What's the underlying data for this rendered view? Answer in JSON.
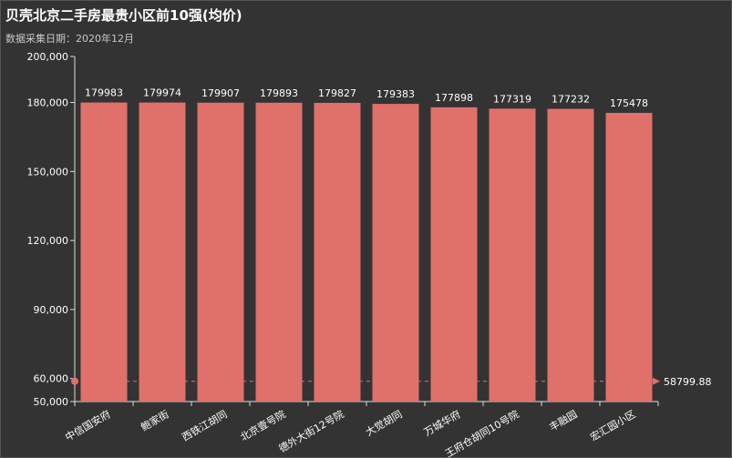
{
  "title": "贝壳北京二手房最贵小区前10强(均价)",
  "subtitle": "数据采集日期：2020年12月",
  "chart_data": {
    "type": "bar",
    "categories": [
      "中信国安府",
      "鲍家街",
      "西铁江胡同",
      "北京壹号院",
      "德外大街12号院",
      "大觉胡同",
      "万城华府",
      "王府仓胡同10号院",
      "丰融园",
      "宏汇园小区"
    ],
    "values": [
      179983,
      179974,
      179907,
      179893,
      179827,
      179383,
      177898,
      177319,
      177232,
      175478
    ],
    "ylim": [
      50000,
      200000
    ],
    "yticks": [
      50000,
      60000,
      90000,
      120000,
      150000,
      180000,
      200000
    ],
    "ytick_labels": [
      "50,000",
      "60,000",
      "90,000",
      "120,000",
      "150,000",
      "180,000",
      "200,000"
    ],
    "markline": {
      "value": 58799.88,
      "label": "58799.88"
    },
    "colors": {
      "bar": "#e0706a",
      "text": "#ffffff",
      "axis": "#dddddd",
      "markline": "#e0706a",
      "background": "#333333"
    }
  }
}
